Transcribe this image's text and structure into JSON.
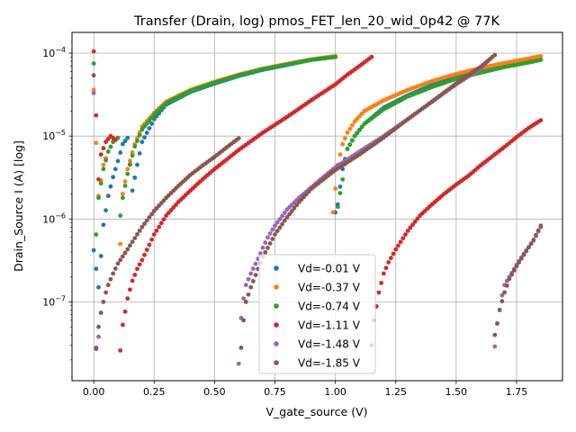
{
  "chart_data": {
    "type": "scatter",
    "title": "Transfer (Drain, log) pmos_FET_len_20_wid_0p42 @ 77K",
    "xlabel": "V_gate_source (V)",
    "ylabel": "Drain_Source I (A) [log]",
    "xlim": [
      -0.09,
      1.94
    ],
    "ylim_log10": [
      -7.95,
      -3.75
    ],
    "x_ticks": [
      {
        "value": 0.0,
        "label": "0.00"
      },
      {
        "value": 0.25,
        "label": "0.25"
      },
      {
        "value": 0.5,
        "label": "0.50"
      },
      {
        "value": 0.75,
        "label": "0.75"
      },
      {
        "value": 1.0,
        "label": "1.00"
      },
      {
        "value": 1.25,
        "label": "1.25"
      },
      {
        "value": 1.5,
        "label": "1.50"
      },
      {
        "value": 1.75,
        "label": "1.75"
      }
    ],
    "y_ticks": [
      {
        "value": 1e-07,
        "mantissa": "10",
        "exponent": "−7"
      },
      {
        "value": 1e-06,
        "mantissa": "10",
        "exponent": "−6"
      },
      {
        "value": 1e-05,
        "mantissa": "10",
        "exponent": "−5"
      },
      {
        "value": 0.0001,
        "mantissa": "10",
        "exponent": "−4"
      }
    ],
    "grid": true,
    "legend_position": "bottom-center",
    "series": [
      {
        "name": "Vd=-0.01 V",
        "color": "#1f77b4",
        "segments": [
          {
            "x": [
              0.0,
              0.02,
              0.04,
              0.06,
              0.08,
              0.1,
              0.12,
              0.14,
              0.16,
              0.18,
              0.2,
              0.25,
              0.3,
              0.4,
              0.5,
              0.6,
              0.7,
              0.8,
              0.9,
              1.0
            ],
            "y": [
              4.2e-07,
              1.5e-07,
              8.5e-07,
              1.9e-06,
              3.2e-06,
              5e-06,
              8e-06,
              9.5e-06,
              2.2e-06,
              4.5e-06,
              8.5e-06,
              1.6e-05,
              2.4e-05,
              3.4e-05,
              4.3e-05,
              5.3e-05,
              6.3e-05,
              7.2e-05,
              8.3e-05,
              9e-05
            ]
          },
          {
            "x": [
              1.0,
              1.01,
              1.03,
              1.05,
              1.08,
              1.12,
              1.2,
              1.3,
              1.4,
              1.5,
              1.6,
              1.7,
              1.8,
              1.85
            ],
            "y": [
              1.2e-06,
              1.5e-06,
              4e-06,
              7e-06,
              1e-05,
              1.4e-05,
              2.2e-05,
              3.1e-05,
              4.1e-05,
              5.1e-05,
              6.1e-05,
              7e-05,
              7.9e-05,
              8.3e-05
            ]
          }
        ]
      },
      {
        "name": "Vd=-0.37 V",
        "color": "#ff7f0e",
        "segments": [
          {
            "x": [
              0.0,
              0.02,
              0.04,
              0.06,
              0.08,
              0.1,
              0.11,
              0.12,
              0.14,
              0.17,
              0.2,
              0.25,
              0.3,
              0.4,
              0.5,
              0.6,
              0.7,
              0.8,
              0.9,
              1.0
            ],
            "y": [
              3.6e-05,
              1.9e-06,
              4.5e-06,
              6.5e-06,
              8.5e-06,
              9.5e-06,
              5e-07,
              2e-06,
              4e-06,
              8e-06,
              1.3e-05,
              1.9e-05,
              2.6e-05,
              3.6e-05,
              4.5e-05,
              5.5e-05,
              6.5e-05,
              7.4e-05,
              8.4e-05,
              9.2e-05
            ]
          },
          {
            "x": [
              0.99,
              1.01,
              1.03,
              1.05,
              1.08,
              1.12,
              1.2,
              1.3,
              1.4,
              1.5,
              1.6,
              1.7,
              1.8,
              1.85
            ],
            "y": [
              1.2e-06,
              4.5e-06,
              8e-06,
              1.1e-05,
              1.5e-05,
              2e-05,
              2.7e-05,
              3.6e-05,
              4.6e-05,
              5.6e-05,
              6.6e-05,
              7.6e-05,
              8.6e-05,
              9.2e-05
            ]
          }
        ]
      },
      {
        "name": "Vd=-0.74 V",
        "color": "#2ca02c",
        "segments": [
          {
            "x": [
              0.0,
              0.01,
              0.02,
              0.04,
              0.06,
              0.08,
              0.1,
              0.11,
              0.12,
              0.14,
              0.17,
              0.2,
              0.25,
              0.3,
              0.4,
              0.5,
              0.6,
              0.7,
              0.8,
              0.9,
              1.0
            ],
            "y": [
              7.5e-05,
              6.5e-07,
              1.8e-06,
              4e-06,
              6.5e-06,
              8.5e-06,
              9.5e-06,
              1.1e-06,
              1.8e-06,
              3.5e-06,
              7.5e-06,
              1.2e-05,
              1.8e-05,
              2.5e-05,
              3.5e-05,
              4.4e-05,
              5.4e-05,
              6.4e-05,
              7.3e-05,
              8.3e-05,
              9e-05
            ]
          },
          {
            "x": [
              1.01,
              1.03,
              1.05,
              1.08,
              1.12,
              1.2,
              1.3,
              1.4,
              1.5,
              1.6,
              1.7,
              1.8,
              1.85
            ],
            "y": [
              1.4e-06,
              3e-06,
              7e-06,
              1e-05,
              1.4e-05,
              2.1e-05,
              3e-05,
              3.9e-05,
              4.9e-05,
              5.8e-05,
              6.8e-05,
              7.7e-05,
              8.3e-05
            ]
          }
        ]
      },
      {
        "name": "Vd=-1.11 V",
        "color": "#d62728",
        "segments": [
          {
            "x": [
              0.0,
              0.02,
              0.03,
              0.05,
              0.07,
              0.09
            ],
            "y": [
              0.000105,
              3e-06,
              6e-06,
              8.5e-06,
              1e-05,
              9e-06
            ]
          },
          {
            "x": [
              0.11,
              0.12,
              0.14,
              0.16,
              0.18,
              0.2,
              0.25,
              0.3,
              0.35,
              0.4,
              0.45,
              0.5,
              0.55,
              0.6,
              0.7,
              0.8,
              0.9,
              1.0,
              1.05,
              1.1,
              1.15
            ],
            "y": [
              2.6e-08,
              5.3e-08,
              1.1e-07,
              1.8e-07,
              2.5e-07,
              3.2e-07,
              6.5e-07,
              1.1e-06,
              1.6e-06,
              2.2e-06,
              3e-06,
              4e-06,
              5.2e-06,
              6.8e-06,
              1.1e-05,
              1.7e-05,
              2.7e-05,
              4.2e-05,
              5.5e-05,
              7e-05,
              9e-05
            ]
          },
          {
            "x": [
              1.15,
              1.16,
              1.18,
              1.2,
              1.22,
              1.25,
              1.3,
              1.35,
              1.4,
              1.45,
              1.5,
              1.55,
              1.6,
              1.65,
              1.7,
              1.75,
              1.8,
              1.85
            ],
            "y": [
              3e-08,
              6e-08,
              1.3e-07,
              2.2e-07,
              3e-07,
              4.3e-07,
              7.2e-07,
              1.1e-06,
              1.5e-06,
              2e-06,
              2.6e-06,
              3.3e-06,
              4.4e-06,
              5.7e-06,
              7.4e-06,
              9.7e-06,
              1.25e-05,
              1.55e-05
            ]
          }
        ]
      },
      {
        "name": "Vd=-1.48 V",
        "color": "#9467bd",
        "segments": [
          {
            "x": [
              0.0,
              0.01,
              0.02
            ],
            "y": [
              3.3e-05,
              2.7e-08,
              3.8e-08
            ]
          },
          {
            "x": [
              0.6,
              0.61,
              0.62,
              0.63,
              0.65,
              0.68,
              0.7,
              0.72,
              0.75,
              0.8,
              0.85,
              0.9,
              0.95,
              1.0,
              1.1,
              1.2,
              1.3,
              1.4,
              1.5,
              1.6,
              1.65
            ],
            "y": [
              1.8e-08,
              6.4e-08,
              1.1e-07,
              1.6e-07,
              2.2e-07,
              3.3e-07,
              4.5e-07,
              6e-07,
              8.3e-07,
              1.3e-06,
              1.8e-06,
              2.4e-06,
              3.2e-06,
              4.2e-06,
              6.5e-06,
              1e-05,
              1.6e-05,
              2.6e-05,
              4.2e-05,
              6.5e-05,
              9e-05
            ]
          },
          {
            "x": [
              1.66,
              1.67,
              1.68,
              1.69,
              1.7,
              1.72,
              1.75,
              1.78,
              1.82,
              1.85
            ],
            "y": [
              2.9e-08,
              5.5e-08,
              8e-08,
              1.2e-07,
              1.6e-07,
              2e-07,
              2.8e-07,
              3.8e-07,
              5.5e-07,
              8e-07
            ]
          }
        ]
      },
      {
        "name": "Vd=-1.85 V",
        "color": "#8c564b",
        "segments": [
          {
            "x": [
              0.0,
              0.01,
              0.02,
              0.03,
              0.04,
              0.05,
              0.06,
              0.08,
              0.1,
              0.13,
              0.16,
              0.2,
              0.25,
              0.3,
              0.35,
              0.4,
              0.45,
              0.5,
              0.55,
              0.6
            ],
            "y": [
              5.4e-05,
              2.8e-08,
              5e-08,
              7.4e-08,
              1e-07,
              1.3e-07,
              1.6e-07,
              2.2e-07,
              2.9e-07,
              3.9e-07,
              5.3e-07,
              8e-07,
              1.25e-06,
              1.8e-06,
              2.5e-06,
              3.4e-06,
              4.4e-06,
              5.6e-06,
              7.3e-06,
              9.4e-06
            ]
          },
          {
            "x": [
              0.61,
              0.62,
              0.63,
              0.65,
              0.68,
              0.7,
              0.75,
              0.8,
              0.85,
              0.9,
              0.95,
              1.0,
              1.1,
              1.2,
              1.3,
              1.4,
              1.5,
              1.6,
              1.66
            ],
            "y": [
              2.8e-08,
              6e-08,
              1e-07,
              1.5e-07,
              2.5e-07,
              3.5e-07,
              6.5e-07,
              1.05e-06,
              1.6e-06,
              2.3e-06,
              3e-06,
              3.9e-06,
              6e-06,
              9.6e-06,
              1.6e-05,
              2.6e-05,
              4.3e-05,
              6.8e-05,
              9.5e-05
            ]
          },
          {
            "x": [
              1.66,
              1.67,
              1.68,
              1.7,
              1.72,
              1.75,
              1.78,
              1.82,
              1.85
            ],
            "y": [
              4e-08,
              5.5e-08,
              8e-08,
              1.3e-07,
              1.9e-07,
              2.7e-07,
              3.7e-07,
              5.6e-07,
              8.3e-07
            ]
          }
        ]
      }
    ]
  }
}
